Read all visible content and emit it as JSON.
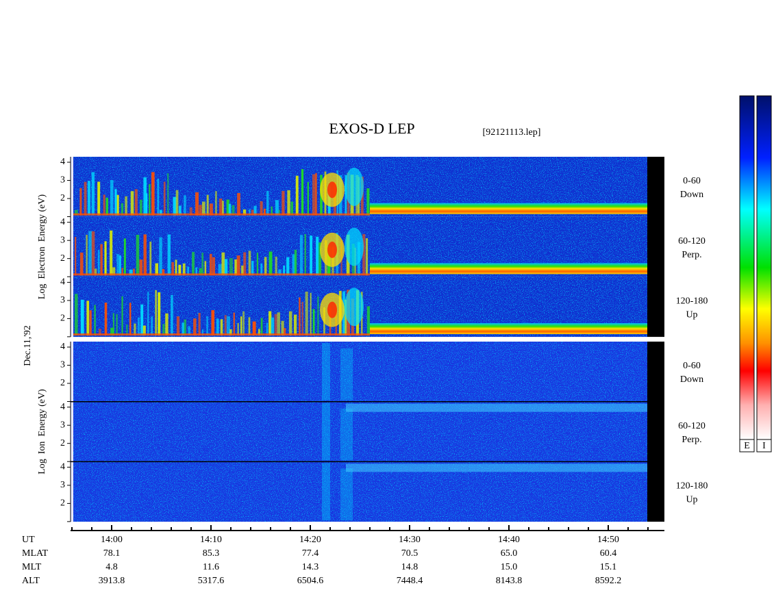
{
  "title": "EXOS-D LEP",
  "file_label": "[92121113.lep]",
  "date_label": "Dec.11,'92",
  "panels": [
    {
      "ylabel": "Log  Electron  Energy (eV)",
      "channels": [
        {
          "range": "0-60",
          "direction": "Down",
          "yticks": [
            "4",
            "3",
            "2"
          ]
        },
        {
          "range": "60-120",
          "direction": "Perp.",
          "yticks": [
            "4",
            "3",
            "2"
          ]
        },
        {
          "range": "120-180",
          "direction": "Up",
          "yticks": [
            "4",
            "3",
            "2"
          ]
        }
      ]
    },
    {
      "ylabel": "Log  Ion  Energy (eV)",
      "channels": [
        {
          "range": "0-60",
          "direction": "Down",
          "yticks": [
            "4",
            "3",
            "2"
          ]
        },
        {
          "range": "60-120",
          "direction": "Perp.",
          "yticks": [
            "4",
            "3",
            "2"
          ]
        },
        {
          "range": "120-180",
          "direction": "Up",
          "yticks": [
            "4",
            "3",
            "2"
          ]
        }
      ]
    }
  ],
  "colorbar_labels": [
    "E",
    "I"
  ],
  "footer": {
    "rows": [
      {
        "label": "UT",
        "values": [
          "14:00",
          "14:10",
          "14:20",
          "14:30",
          "14:40",
          "14:50"
        ]
      },
      {
        "label": "MLAT",
        "values": [
          "78.1",
          "85.3",
          "77.4",
          "70.5",
          "65.0",
          "60.4"
        ]
      },
      {
        "label": "MLT",
        "values": [
          "4.8",
          "11.6",
          "14.3",
          "14.8",
          "15.0",
          "15.1"
        ]
      },
      {
        "label": "ALT",
        "values": [
          "3913.8",
          "5317.6",
          "6504.6",
          "7448.4",
          "8143.8",
          "8592.2"
        ]
      }
    ]
  }
}
